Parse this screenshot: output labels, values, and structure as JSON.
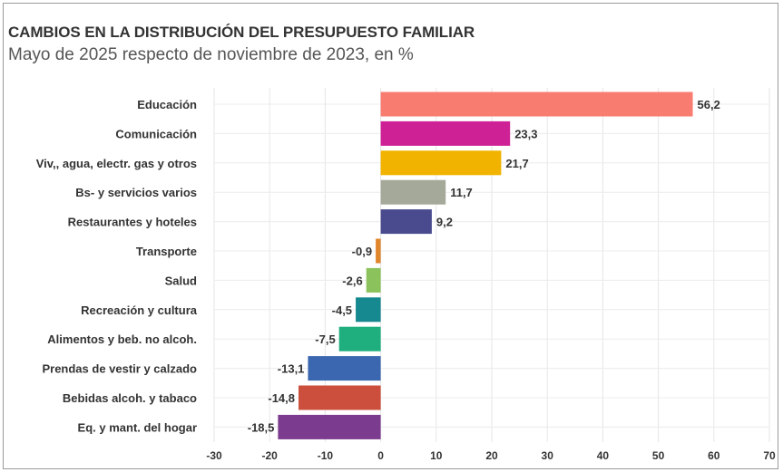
{
  "header": {
    "title": "CAMBIOS EN LA DISTRIBUCIÓN DEL PRESUPUESTO FAMILIAR",
    "subtitle": "Mayo de 2025 respecto de noviembre de 2023, en %"
  },
  "chart_data": {
    "type": "bar",
    "orientation": "horizontal",
    "title": "CAMBIOS EN LA DISTRIBUCIÓN DEL PRESUPUESTO FAMILIAR",
    "subtitle": "Mayo de 2025 respecto de noviembre de 2023, en %",
    "xlabel": "",
    "ylabel": "",
    "xlim": [
      -30,
      70
    ],
    "xticks": [
      -30,
      -20,
      -10,
      0,
      10,
      20,
      30,
      40,
      50,
      60,
      70
    ],
    "grid": true,
    "categories": [
      "Educación",
      "Comunicación",
      "Viv,, agua, electr. gas y otros",
      "Bs-  y servicios varios",
      "Restaurantes y hoteles",
      "Transporte",
      "Salud",
      "Recreación y cultura",
      "Alimentos y beb. no alcoh.",
      "Prendas de vestir y calzado",
      "Bebidas alcoh. y tabaco",
      "Eq. y mant. del hogar"
    ],
    "values": [
      56.2,
      23.3,
      21.7,
      11.7,
      9.2,
      -0.9,
      -2.6,
      -4.5,
      -7.5,
      -13.1,
      -14.8,
      -18.5
    ],
    "value_labels": [
      "56,2",
      "23,3",
      "21,7",
      "11,7",
      "9,2",
      "-0,9",
      "-2,6",
      "-4,5",
      "-7,5",
      "-13,1",
      "-14,8",
      "-18,5"
    ],
    "colors": [
      "#f87c70",
      "#cf2196",
      "#f1b300",
      "#a5a999",
      "#4a4b8e",
      "#e0862c",
      "#8bc25b",
      "#16888f",
      "#1fae7d",
      "#3b67b1",
      "#cb4f3c",
      "#7b3b8e"
    ]
  }
}
